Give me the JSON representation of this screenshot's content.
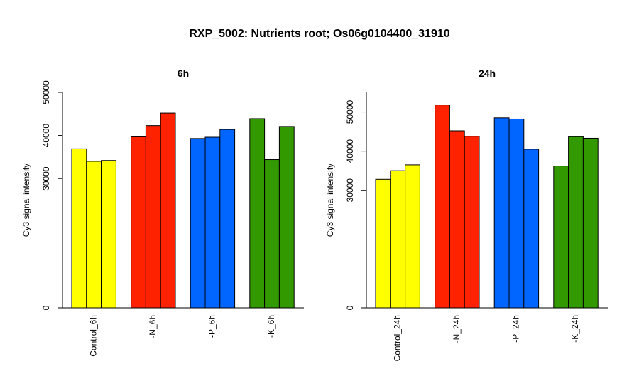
{
  "title": "RXP_5002: Nutrients root; Os06g0104400_31910",
  "chart_data": [
    {
      "type": "bar",
      "title": "6h",
      "ylabel": "Cy3 signal intensity",
      "ylim": [
        0,
        50000
      ],
      "yticks": [
        0,
        30000,
        40000,
        50000
      ],
      "ytick_labels": [
        "0",
        "30000",
        "40000",
        "50000"
      ],
      "groups": [
        {
          "label": "Control_6h",
          "color": "#FFFF00",
          "values": [
            36900,
            34000,
            34200
          ]
        },
        {
          "label": "-N_6h",
          "color": "#FF2200",
          "values": [
            39700,
            42300,
            45200
          ]
        },
        {
          "label": "-P_6h",
          "color": "#0066FF",
          "values": [
            39300,
            39600,
            41400
          ]
        },
        {
          "label": "-K_6h",
          "color": "#339900",
          "values": [
            43900,
            34400,
            42100
          ]
        }
      ]
    },
    {
      "type": "bar",
      "title": "24h",
      "ylabel": "Cy3 signal intensity",
      "ylim": [
        0,
        55000
      ],
      "yticks": [
        0,
        30000,
        40000,
        50000
      ],
      "ytick_labels": [
        "0",
        "30000",
        "40000",
        "50000"
      ],
      "groups": [
        {
          "label": "Control_24h",
          "color": "#FFFF00",
          "values": [
            32800,
            35000,
            36500
          ]
        },
        {
          "label": "-N_24h",
          "color": "#FF2200",
          "values": [
            51800,
            45200,
            43800
          ]
        },
        {
          "label": "-P_24h",
          "color": "#0066FF",
          "values": [
            48500,
            48200,
            40500
          ]
        },
        {
          "label": "-K_24h",
          "color": "#339900",
          "values": [
            36200,
            43700,
            43300
          ]
        }
      ]
    }
  ]
}
